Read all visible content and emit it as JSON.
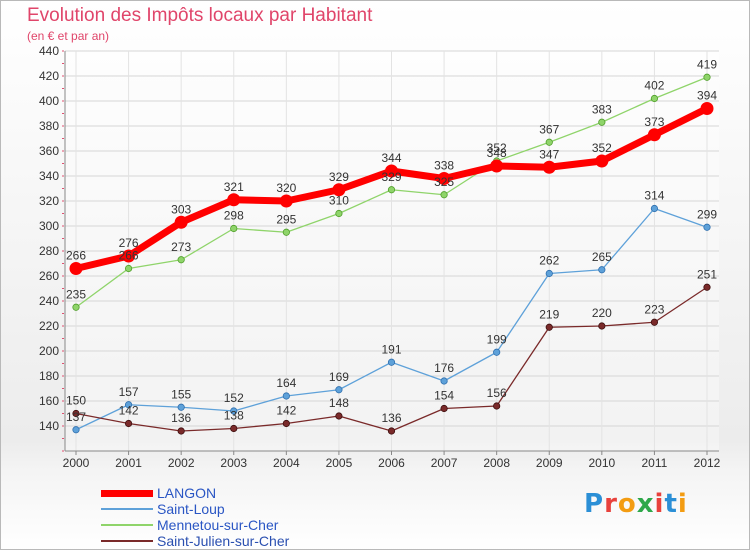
{
  "title": "Evolution des Impôts locaux par Habitant",
  "subtitle": "(en € et par an)",
  "logo": "Proxiti",
  "logo_colors": [
    "#2b8fd6",
    "#e8413c",
    "#f39c12",
    "#2ea84a",
    "#e8413c",
    "#2b8fd6",
    "#f39c12"
  ],
  "chart_data": {
    "type": "line",
    "x": [
      "2000",
      "2001",
      "2002",
      "2003",
      "2004",
      "2005",
      "2006",
      "2007",
      "2008",
      "2009",
      "2010",
      "2011",
      "2012"
    ],
    "ylim": [
      120,
      440
    ],
    "yticks": [
      140,
      160,
      180,
      200,
      220,
      240,
      260,
      280,
      300,
      320,
      340,
      360,
      380,
      400,
      420,
      440
    ],
    "grid": true,
    "legend_position": "bottom-left",
    "series": [
      {
        "name": "LANGON",
        "color": "#ff0000",
        "values": [
          266,
          276,
          303,
          321,
          320,
          329,
          344,
          338,
          348,
          347,
          352,
          373,
          394
        ]
      },
      {
        "name": "Saint-Loup",
        "color": "#5ea1d9",
        "values": [
          137,
          157,
          155,
          152,
          164,
          169,
          191,
          176,
          199,
          262,
          265,
          314,
          299
        ]
      },
      {
        "name": "Mennetou-sur-Cher",
        "color": "#8fd46a",
        "values": [
          235,
          266,
          273,
          298,
          295,
          310,
          329,
          325,
          352,
          367,
          383,
          402,
          419
        ]
      },
      {
        "name": "Saint-Julien-sur-Cher",
        "color": "#7a2a2a",
        "values": [
          150,
          142,
          136,
          138,
          142,
          148,
          136,
          154,
          156,
          219,
          220,
          223,
          251
        ]
      }
    ]
  }
}
